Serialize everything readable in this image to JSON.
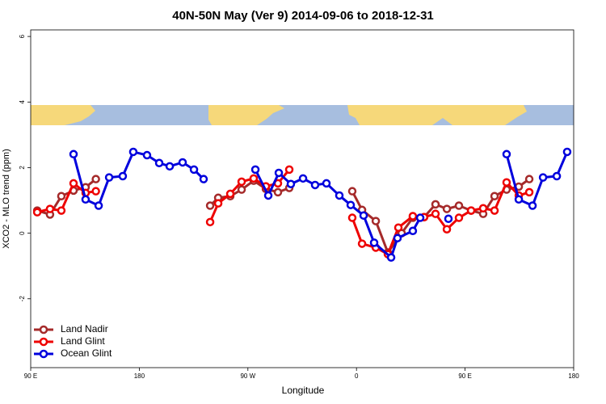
{
  "chart_data": {
    "type": "line",
    "title": "40N-50N May (Ver 9)   2014-09-06 to 2018-12-31",
    "x_label": "Longitude",
    "y_label": "XCO2 - MLO trend (ppm)",
    "xlim": [
      90,
      540
    ],
    "ylim": [
      -4.1,
      6.2
    ],
    "xticks": [
      {
        "value": 90,
        "label": "90 E"
      },
      180,
      {
        "value": 270,
        "label": "90 W"
      },
      {
        "value": 360,
        "label": "0"
      },
      {
        "value": 450,
        "label": "90 E"
      },
      {
        "value": 540,
        "label": "180"
      }
    ],
    "yticks": [
      -2,
      0,
      2,
      4,
      6
    ],
    "legend": "bottom-left",
    "series": [
      {
        "name": "Land Nadir",
        "color": "#a52a2a",
        "x": [
          95.4,
          106,
          115.4,
          125.5,
          135.5,
          144,
          null,
          238.7,
          245.4,
          255.4,
          264.8,
          274.8,
          284.9,
          294.9,
          304.3,
          null,
          356.5,
          364.6,
          376,
          386,
          397.4,
          406.7,
          416,
          425.5,
          434.9,
          444.9,
          455,
          465,
          474.4,
          484.4,
          494.5,
          503.2
        ],
        "values": [
          0.69,
          0.57,
          1.13,
          1.3,
          1.4,
          1.65,
          null,
          0.84,
          1.08,
          1.13,
          1.33,
          1.6,
          1.35,
          1.25,
          1.38,
          null,
          1.28,
          0.71,
          0.37,
          -0.59,
          0,
          0.47,
          0.49,
          0.88,
          0.74,
          0.84,
          0.69,
          0.59,
          1.13,
          1.33,
          1.42,
          1.65
        ]
      },
      {
        "name": "Land Glint",
        "color": "#ee0000",
        "x": [
          95.4,
          106,
          115.4,
          125.5,
          135.5,
          144,
          null,
          238.7,
          245.4,
          255.4,
          264.8,
          274.8,
          284.9,
          294.9,
          304.3,
          null,
          356.5,
          364.6,
          376,
          386,
          394.7,
          406.7,
          416,
          425.5,
          434.9,
          444.9,
          455,
          465,
          474.4,
          484.4,
          494.5,
          503.2
        ],
        "values": [
          0.64,
          0.74,
          0.69,
          1.52,
          1.23,
          1.28,
          null,
          0.34,
          0.91,
          1.2,
          1.57,
          1.67,
          1.43,
          1.52,
          1.94,
          null,
          0.47,
          -0.32,
          -0.44,
          -0.64,
          0.17,
          0.52,
          0.49,
          0.59,
          0.12,
          0.47,
          0.69,
          0.76,
          0.69,
          1.55,
          1.15,
          1.25
        ]
      },
      {
        "name": "Ocean Glint",
        "color": "#0000dd",
        "x": [
          125.5,
          135.5,
          146.3,
          155,
          166.3,
          175,
          186.4,
          196.5,
          205.2,
          215.9,
          225.3,
          233.3,
          null,
          276.2,
          286.9,
          295.6,
          305.6,
          315.7,
          325.7,
          335.1,
          345.8,
          355.2,
          365.9,
          374.6,
          388.7,
          394,
          406.7,
          412.8,
          null,
          436.2,
          null,
          484.4,
          494.5,
          505.9,
          514.6,
          526,
          534.6
        ],
        "values": [
          2.41,
          1.03,
          0.84,
          1.7,
          1.74,
          2.48,
          2.38,
          2.14,
          2.04,
          2.16,
          1.94,
          1.65,
          null,
          1.94,
          1.15,
          1.84,
          1.5,
          1.67,
          1.47,
          1.52,
          1.15,
          0.86,
          0.54,
          -0.29,
          -0.74,
          -0.15,
          0.07,
          0.47,
          null,
          0.44,
          null,
          2.41,
          1.03,
          0.84,
          1.7,
          1.74,
          2.48
        ]
      }
    ]
  }
}
